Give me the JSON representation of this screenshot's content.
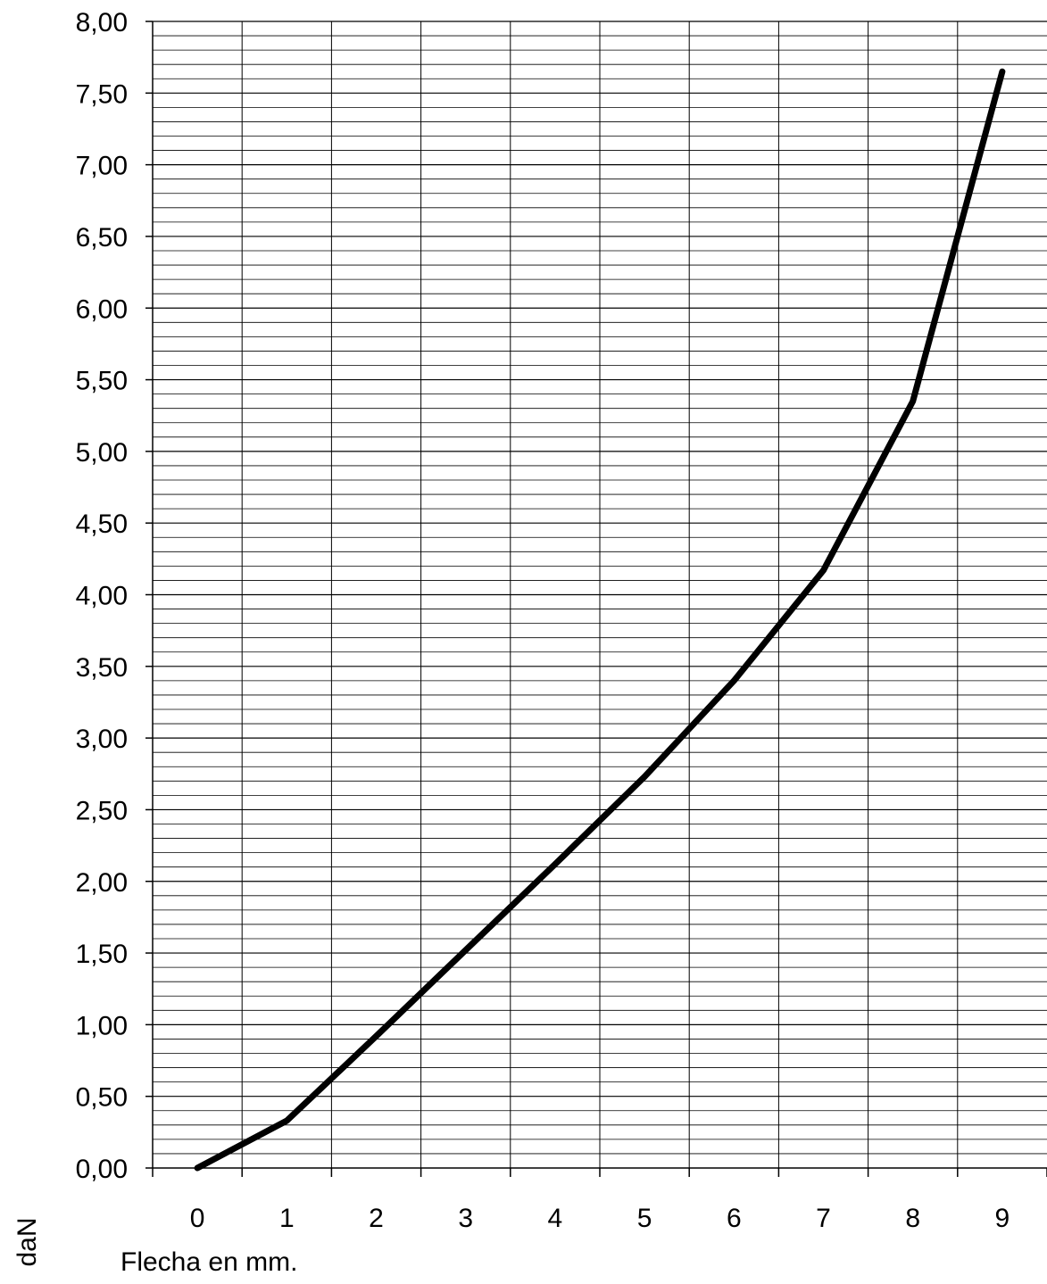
{
  "chart_data": {
    "type": "line",
    "xlabel": "Flecha en mm.",
    "ylabel": "daN",
    "x_ticks": [
      "0",
      "1",
      "2",
      "3",
      "4",
      "5",
      "6",
      "7",
      "8",
      "9"
    ],
    "y_ticks": [
      "0,00",
      "0,50",
      "1,00",
      "1,50",
      "2,00",
      "2,50",
      "3,00",
      "3,50",
      "4,00",
      "4,50",
      "5,00",
      "5,50",
      "6,00",
      "6,50",
      "7,00",
      "7,50",
      "8,00"
    ],
    "xlim": [
      -0.5,
      9.5
    ],
    "ylim": [
      0,
      8
    ],
    "y_minor_step": 0.1,
    "grid": true,
    "line_color": "#000000",
    "series": [
      {
        "x": [
          0,
          1,
          2,
          3,
          4,
          5,
          6,
          7,
          8,
          9
        ],
        "values": [
          0.0,
          0.33,
          0.92,
          1.52,
          2.12,
          2.73,
          3.4,
          4.17,
          5.35,
          7.65
        ]
      }
    ]
  }
}
